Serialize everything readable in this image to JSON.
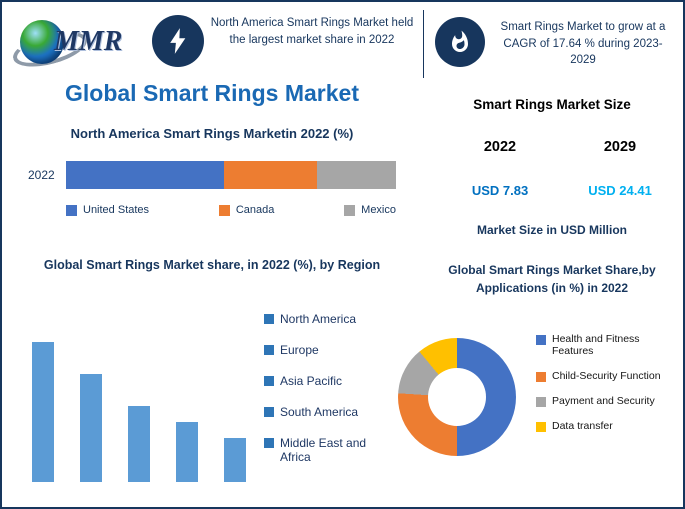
{
  "header": {
    "logo_text": "MMR",
    "left_callout": "North America Smart Rings Market held the largest market share in 2022",
    "right_callout": "Smart Rings Market to grow at a CAGR of 17.64 % during 2023-2029"
  },
  "left": {
    "title": "Global Smart Rings Market"
  },
  "right": {
    "market_size": {
      "title": "Smart Rings Market Size",
      "year_start": "2022",
      "year_end": "2029",
      "value_start": "USD 7.83",
      "value_end": "USD 24.41",
      "value_start_color": "#0070c0",
      "value_end_color": "#00b0f0",
      "caption": "Market Size in USD Million"
    }
  },
  "chart_data": [
    {
      "id": "north-america-share",
      "type": "bar",
      "variant": "stacked-horizontal",
      "title": "North America Smart Rings Marketin 2022 (%)",
      "categories": [
        "2022"
      ],
      "series": [
        {
          "name": "United States",
          "values": [
            48
          ],
          "color": "#4472c4"
        },
        {
          "name": "Canada",
          "values": [
            28
          ],
          "color": "#ed7d31"
        },
        {
          "name": "Mexico",
          "values": [
            24
          ],
          "color": "#a6a6a6"
        }
      ],
      "xlim": [
        0,
        100
      ],
      "grid": false,
      "legend_position": "bottom"
    },
    {
      "id": "region-share",
      "type": "bar",
      "title": "Global Smart Rings Market share, in 2022 (%), by Region",
      "categories": [
        "North America",
        "Europe",
        "Asia Pacific",
        "South America",
        "Middle East and Africa"
      ],
      "values": [
        35,
        27,
        19,
        15,
        11
      ],
      "bar_color": "#5b9bd5",
      "legend_color": "#2e75b6",
      "ylim": [
        0,
        40
      ],
      "grid": false,
      "legend_position": "right"
    },
    {
      "id": "applications-share",
      "type": "pie",
      "variant": "donut",
      "title": "Global Smart Rings Market Share,by Applications (in %) in 2022",
      "categories": [
        "Health and Fitness Features",
        "Child-Security Function",
        "Payment and Security",
        "Data transfer"
      ],
      "values": [
        50,
        26,
        13,
        11
      ],
      "colors": [
        "#4472c4",
        "#ed7d31",
        "#a6a6a6",
        "#ffc000"
      ],
      "legend_position": "right"
    }
  ]
}
